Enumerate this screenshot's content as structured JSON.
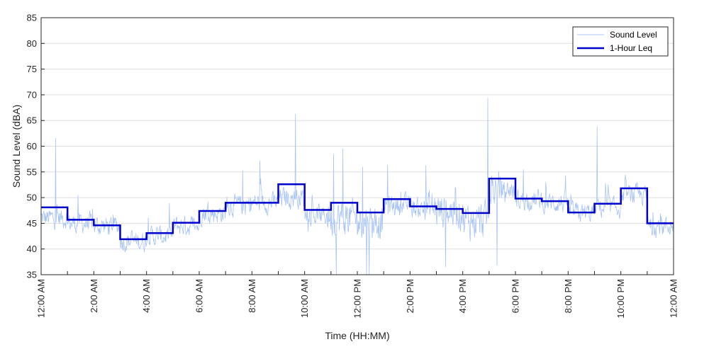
{
  "chart_data": {
    "type": "line",
    "xlabel": "Time (HH:MM)",
    "ylabel": "Sound Level (dBA)",
    "ylim": [
      35,
      85
    ],
    "yticks": [
      35,
      40,
      45,
      50,
      55,
      60,
      65,
      70,
      75,
      80,
      85
    ],
    "xlim_hours": [
      0,
      24
    ],
    "xtick_labels": [
      "12:00 AM",
      "2:00 AM",
      "4:00 AM",
      "6:00 AM",
      "8:00 AM",
      "10:00 AM",
      "12:00 PM",
      "2:00 PM",
      "4:00 PM",
      "6:00 PM",
      "8:00 PM",
      "10:00 PM",
      "12:00 AM"
    ],
    "grid": "horizontal",
    "legend_position": "top-right",
    "series": [
      {
        "name": "Sound Level",
        "color": "#a9c4f5",
        "style": "thin-noisy-line",
        "hourly_mean_dba": [
          46,
          45,
          44.5,
          41.5,
          42.5,
          44.5,
          47,
          48.5,
          49,
          50,
          46.5,
          46,
          45.5,
          48.5,
          48,
          47.5,
          45.5,
          51.5,
          49.5,
          49,
          47,
          48,
          50.5,
          44.5
        ],
        "peaks": [
          {
            "hour": 0.55,
            "dba": 61.6
          },
          {
            "hour": 1.4,
            "dba": 50.5
          },
          {
            "hour": 7.65,
            "dba": 55.3
          },
          {
            "hour": 8.3,
            "dba": 57.2
          },
          {
            "hour": 9.65,
            "dba": 66.3
          },
          {
            "hour": 11.1,
            "dba": 58.5
          },
          {
            "hour": 11.45,
            "dba": 59.5
          },
          {
            "hour": 12.2,
            "dba": 56.0
          },
          {
            "hour": 13.15,
            "dba": 56.4
          },
          {
            "hour": 14.6,
            "dba": 56.3
          },
          {
            "hour": 16.95,
            "dba": 69.4
          },
          {
            "hour": 18.3,
            "dba": 55.5
          },
          {
            "hour": 21.1,
            "dba": 63.8
          }
        ],
        "dips": [
          {
            "hour": 11.2,
            "dba": 35
          },
          {
            "hour": 12.35,
            "dba": 35
          },
          {
            "hour": 12.45,
            "dba": 35
          },
          {
            "hour": 15.35,
            "dba": 36.5
          },
          {
            "hour": 17.3,
            "dba": 36.8
          }
        ]
      },
      {
        "name": "1-Hour Leq",
        "color": "#0000cd",
        "style": "step",
        "hour_start": [
          0,
          1,
          2,
          3,
          4,
          5,
          6,
          7,
          8,
          9,
          10,
          11,
          12,
          13,
          14,
          15,
          16,
          17,
          18,
          19,
          20,
          21,
          22,
          23
        ],
        "values": [
          48.1,
          45.7,
          44.6,
          41.9,
          43.1,
          45.1,
          47.4,
          49.0,
          49.0,
          52.6,
          47.6,
          49.0,
          47.1,
          49.7,
          48.3,
          47.8,
          47.0,
          53.7,
          49.8,
          49.3,
          47.1,
          48.8,
          51.8,
          45.0
        ]
      }
    ]
  }
}
